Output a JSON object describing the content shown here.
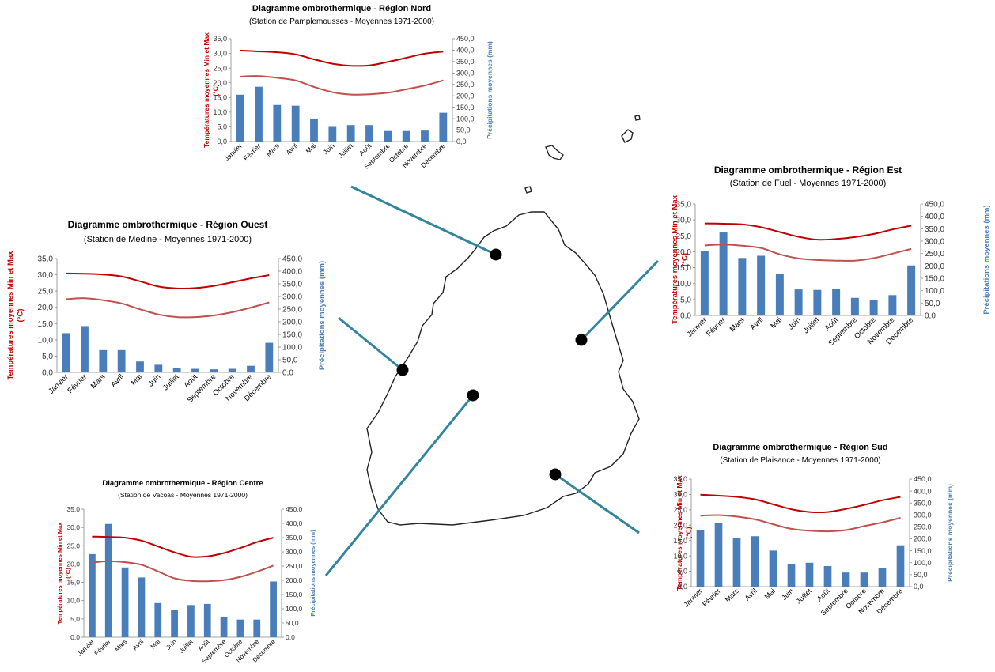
{
  "chart_data": [
    {
      "type": "bar",
      "title": "Diagramme ombrothermique - Région Nord",
      "subtitle": "(Station de Pamplemousses - Moyennes 1971-2000)",
      "categories": [
        "Janvier",
        "Février",
        "Mars",
        "Avril",
        "Mai",
        "Juin",
        "Juillet",
        "Août",
        "Septembre",
        "Octobre",
        "Novembre",
        "Décembre"
      ],
      "ylabel": "Températures moyennes Min et Max (°C)",
      "y2label": "Précipitations moyennes (mm)",
      "ylim": [
        0,
        35
      ],
      "y2lim": [
        0,
        450
      ],
      "yticks": [
        "0,0",
        "5,0",
        "10,0",
        "15,0",
        "20,0",
        "25,0",
        "30,0",
        "35,0"
      ],
      "y2ticks": [
        "0,0",
        "50,0",
        "100,0",
        "150,0",
        "200,0",
        "250,0",
        "300,0",
        "350,0",
        "400,0",
        "450,0"
      ],
      "series": [
        {
          "kind": "line",
          "axis": "left",
          "values": [
            31.0,
            30.7,
            30.4,
            29.7,
            28.0,
            26.5,
            25.8,
            25.9,
            27.1,
            28.5,
            29.9,
            30.6
          ]
        },
        {
          "kind": "line",
          "axis": "left",
          "values": [
            22.1,
            22.3,
            21.7,
            20.8,
            18.6,
            16.8,
            16.0,
            16.1,
            16.6,
            17.8,
            19.1,
            20.8
          ]
        },
        {
          "kind": "bar",
          "axis": "right",
          "values": [
            205,
            240,
            160,
            157,
            99,
            64,
            72,
            72,
            46,
            46,
            48,
            126
          ]
        }
      ],
      "colors": {
        "bar": "#4a7ebb",
        "tmax": "#c00000",
        "tmin": "#c0504d"
      },
      "grid": false
    },
    {
      "type": "bar",
      "title": "Diagramme ombrothermique - Région Ouest",
      "subtitle": "(Station de Medine - Moyennes 1971-2000)",
      "categories": [
        "Janvier",
        "Février",
        "Mars",
        "Avril",
        "Mai",
        "Juin",
        "Juillet",
        "Août",
        "Septembre",
        "Octobre",
        "Novembre",
        "Décembre"
      ],
      "ylabel": "Températures moyennes Min et Max (°C)",
      "y2label": "Précipitations moyennes (mm)",
      "ylim": [
        0,
        35
      ],
      "y2lim": [
        0,
        450
      ],
      "yticks": [
        "0,0",
        "5,0",
        "10,0",
        "15,0",
        "20,0",
        "25,0",
        "30,0",
        "35,0"
      ],
      "y2ticks": [
        "0,0",
        "50,0",
        "100,0",
        "150,0",
        "200,0",
        "250,0",
        "300,0",
        "350,0",
        "400,0",
        "450,0"
      ],
      "series": [
        {
          "kind": "line",
          "axis": "left",
          "values": [
            30.4,
            30.3,
            30.1,
            29.5,
            28.0,
            26.4,
            25.8,
            25.9,
            26.6,
            27.7,
            28.9,
            29.9
          ]
        },
        {
          "kind": "line",
          "axis": "left",
          "values": [
            22.5,
            22.8,
            22.2,
            21.2,
            19.4,
            17.8,
            17.0,
            17.0,
            17.5,
            18.5,
            19.9,
            21.5
          ]
        },
        {
          "kind": "bar",
          "axis": "right",
          "values": [
            155,
            183,
            88,
            88,
            43,
            30,
            16,
            14,
            12,
            14,
            26,
            117
          ]
        }
      ],
      "colors": {
        "bar": "#4a7ebb",
        "tmax": "#c00000",
        "tmin": "#c0504d"
      },
      "grid": false
    },
    {
      "type": "bar",
      "title": "Diagramme ombrothermique - Région Est",
      "subtitle": "(Station de Fuel - Moyennes 1971-2000)",
      "categories": [
        "Janvier",
        "Février",
        "Mars",
        "Avril",
        "Mai",
        "Juin",
        "Juillet",
        "Août",
        "Septembre",
        "Octobre",
        "Novembre",
        "Décembre"
      ],
      "ylabel": "Températures moyennes Min et Max (°C)",
      "y2label": "Précipitations moyennes (mm)",
      "ylim": [
        0,
        35
      ],
      "y2lim": [
        0,
        450
      ],
      "yticks": [
        "0,0",
        "5,0",
        "10,0",
        "15,0",
        "20,0",
        "25,0",
        "30,0",
        "35,0"
      ],
      "y2ticks": [
        "0,0",
        "50,0",
        "100,0",
        "150,0",
        "200,0",
        "250,0",
        "300,0",
        "350,0",
        "400,0",
        "450,0"
      ],
      "series": [
        {
          "kind": "line",
          "axis": "left",
          "values": [
            28.9,
            28.8,
            28.6,
            27.7,
            26.2,
            24.7,
            23.8,
            24.0,
            24.6,
            25.6,
            27.0,
            28.2
          ]
        },
        {
          "kind": "line",
          "axis": "left",
          "values": [
            22.0,
            22.3,
            21.9,
            21.2,
            19.2,
            17.9,
            17.4,
            17.2,
            17.2,
            18.0,
            19.4,
            20.9
          ]
        },
        {
          "kind": "bar",
          "axis": "right",
          "values": [
            259,
            335,
            232,
            241,
            168,
            105,
            103,
            106,
            71,
            62,
            82,
            202
          ]
        }
      ],
      "colors": {
        "bar": "#4a7ebb",
        "tmax": "#c00000",
        "tmin": "#c0504d"
      },
      "grid": false
    },
    {
      "type": "bar",
      "title": "Diagramme ombrothermique - Région Centre",
      "subtitle": "(Station de Vacoas - Moyennes 1971-2000)",
      "categories": [
        "Janvier",
        "Février",
        "Mars",
        "Avril",
        "Mai",
        "Juin",
        "Juillet",
        "Août",
        "Septembre",
        "Octobre",
        "Novembre",
        "Décembre"
      ],
      "ylabel": "Températures moyennes Min et Max (°C)",
      "y2label": "Précipitations moyennes (mm)",
      "ylim": [
        0,
        35
      ],
      "y2lim": [
        0,
        450
      ],
      "yticks": [
        "0,0",
        "5,0",
        "10,0",
        "15,0",
        "20,0",
        "25,0",
        "30,0",
        "35,0"
      ],
      "y2ticks": [
        "0,0",
        "50,0",
        "100,0",
        "150,0",
        "200,0",
        "250,0",
        "300,0",
        "350,0",
        "400,0",
        "450,0"
      ],
      "series": [
        {
          "kind": "line",
          "axis": "left",
          "values": [
            27.5,
            27.4,
            27.2,
            26.4,
            24.8,
            23.2,
            22.0,
            22.1,
            23.0,
            24.4,
            26.0,
            27.2
          ]
        },
        {
          "kind": "line",
          "axis": "left",
          "values": [
            20.4,
            20.8,
            20.5,
            19.8,
            18.0,
            16.1,
            15.4,
            15.3,
            15.6,
            16.5,
            17.9,
            19.6
          ]
        },
        {
          "kind": "bar",
          "axis": "right",
          "values": [
            292,
            398,
            245,
            210,
            120,
            97,
            113,
            117,
            72,
            62,
            62,
            196
          ]
        }
      ],
      "colors": {
        "bar": "#4a7ebb",
        "tmax": "#c00000",
        "tmin": "#c0504d"
      },
      "grid": false
    },
    {
      "type": "bar",
      "title": "Diagramme ombrothermique - Région Sud",
      "subtitle": "(Station de Plaisance - Moyennes 1971-2000)",
      "categories": [
        "Janvier",
        "Février",
        "Mars",
        "Avril",
        "Mai",
        "Juin",
        "Juillet",
        "Août",
        "Septembre",
        "Octobre",
        "Novembre",
        "Décembre"
      ],
      "ylabel": "Températures moyennes Min et Max (°C)",
      "y2label": "Précipitations moyennes (mm)",
      "ylim": [
        0,
        35
      ],
      "y2lim": [
        0,
        450
      ],
      "yticks": [
        "0,0",
        "5,0",
        "10,0",
        "15,0",
        "20,0",
        "25,0",
        "30,0",
        "35,0"
      ],
      "y2ticks": [
        "0,0",
        "50,0",
        "100,0",
        "150,0",
        "200,0",
        "250,0",
        "300,0",
        "350,0",
        "400,0",
        "450,0"
      ],
      "series": [
        {
          "kind": "line",
          "axis": "left",
          "values": [
            29.9,
            29.6,
            29.2,
            28.4,
            26.8,
            25.2,
            24.3,
            24.3,
            25.3,
            26.6,
            28.1,
            29.2
          ]
        },
        {
          "kind": "line",
          "axis": "left",
          "values": [
            23.1,
            23.3,
            22.8,
            21.9,
            20.3,
            18.8,
            18.2,
            18.0,
            18.4,
            19.7,
            20.9,
            22.4
          ]
        },
        {
          "kind": "bar",
          "axis": "right",
          "values": [
            237,
            268,
            205,
            211,
            151,
            93,
            100,
            86,
            59,
            59,
            78,
            173
          ]
        }
      ],
      "colors": {
        "bar": "#4a7ebb",
        "tmax": "#c00000",
        "tmin": "#c0504d"
      },
      "grid": false
    }
  ],
  "map": {
    "island_color": "#222222",
    "connector_color": "#31859c",
    "station_color": "#000000"
  }
}
